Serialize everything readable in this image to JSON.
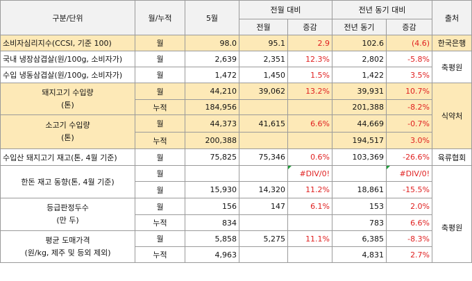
{
  "headers": {
    "category": "구분/단위",
    "period": "월/누적",
    "month": "5월",
    "vs_prev_month": "전월 대비",
    "vs_prev_year": "전년 동기 대비",
    "source": "출처",
    "prev_month": "전월",
    "change": "증감",
    "prev_year": "전년 동기",
    "change2": "증감"
  },
  "rows": {
    "r1": {
      "label": "소비자심리지수(CCSI, 기준 100)",
      "period": "월",
      "may": "98.0",
      "prev_m": "95.1",
      "chg_m": "2.9",
      "prev_y": "102.6",
      "chg_y": "(4.6)",
      "source": "한국은행"
    },
    "r2": {
      "label": "국내 냉장삼겹살(원/100g, 소비자가)",
      "period": "월",
      "may": "2,639",
      "prev_m": "2,351",
      "chg_m": "12.3%",
      "prev_y": "2,802",
      "chg_y": "-5.8%"
    },
    "r3": {
      "label": "수입 냉동삼겹살(원/100g, 소비자가)",
      "period": "월",
      "may": "1,472",
      "prev_m": "1,450",
      "chg_m": "1.5%",
      "prev_y": "1,422",
      "chg_y": "3.5%"
    },
    "src_kpa": "축평원",
    "r4a": {
      "label": "돼지고기 수입량\n(톤)",
      "period": "월",
      "may": "44,210",
      "prev_m": "39,062",
      "chg_m": "13.2%",
      "prev_y": "39,931",
      "chg_y": "10.7%"
    },
    "r4b": {
      "period": "누적",
      "may": "184,956",
      "prev_m": "",
      "chg_m": "",
      "prev_y": "201,388",
      "chg_y": "-8.2%"
    },
    "r5a": {
      "label": "소고기 수입량\n(톤)",
      "period": "월",
      "may": "44,373",
      "prev_m": "41,615",
      "chg_m": "6.6%",
      "prev_y": "44,669",
      "chg_y": "-0.7%"
    },
    "r5b": {
      "period": "누적",
      "may": "200,388",
      "prev_m": "",
      "chg_m": "",
      "prev_y": "194,517",
      "chg_y": "3.0%"
    },
    "src_mfds": "식약처",
    "r6": {
      "label": "수입산 돼지고기 재고(톤, 4월 기준)",
      "period": "월",
      "may": "75,825",
      "prev_m": "75,346",
      "chg_m": "0.6%",
      "prev_y": "103,369",
      "chg_y": "-26.6%",
      "source": "육류협회"
    },
    "r7a": {
      "label": "한돈 재고 동향(톤, 4월 기준)",
      "period": "월",
      "may": "",
      "prev_m": "",
      "chg_m": "#DIV/0!",
      "prev_y": "",
      "chg_y": "#DIV/0!"
    },
    "r7b": {
      "period": "월",
      "may": "15,930",
      "prev_m": "14,320",
      "chg_m": "11.2%",
      "prev_y": "18,861",
      "chg_y": "-15.5%"
    },
    "r8a": {
      "label": "등급판정두수\n(만 두)",
      "period": "월",
      "may": "156",
      "prev_m": "147",
      "chg_m": "6.1%",
      "prev_y": "153",
      "chg_y": "2.0%"
    },
    "r8b": {
      "period": "누적",
      "may": "834",
      "prev_m": "",
      "chg_m": "",
      "prev_y": "783",
      "chg_y": "6.6%"
    },
    "src_kpa2": "축평원",
    "r9a": {
      "label": "평균 도매가격\n(원/kg, 제주 및 등외 제외)",
      "period": "월",
      "may": "5,858",
      "prev_m": "5,275",
      "chg_m": "11.1%",
      "prev_y": "6,385",
      "chg_y": "-8.3%"
    },
    "r9b": {
      "period": "누적",
      "may": "4,963",
      "prev_m": "",
      "chg_m": "",
      "prev_y": "4,831",
      "chg_y": "2.7%"
    }
  },
  "colors": {
    "highlight": "#fde9b7",
    "negative_text": "#e02020",
    "header_bg": "#f2f2f2",
    "error_marker": "#1e9e3a"
  }
}
